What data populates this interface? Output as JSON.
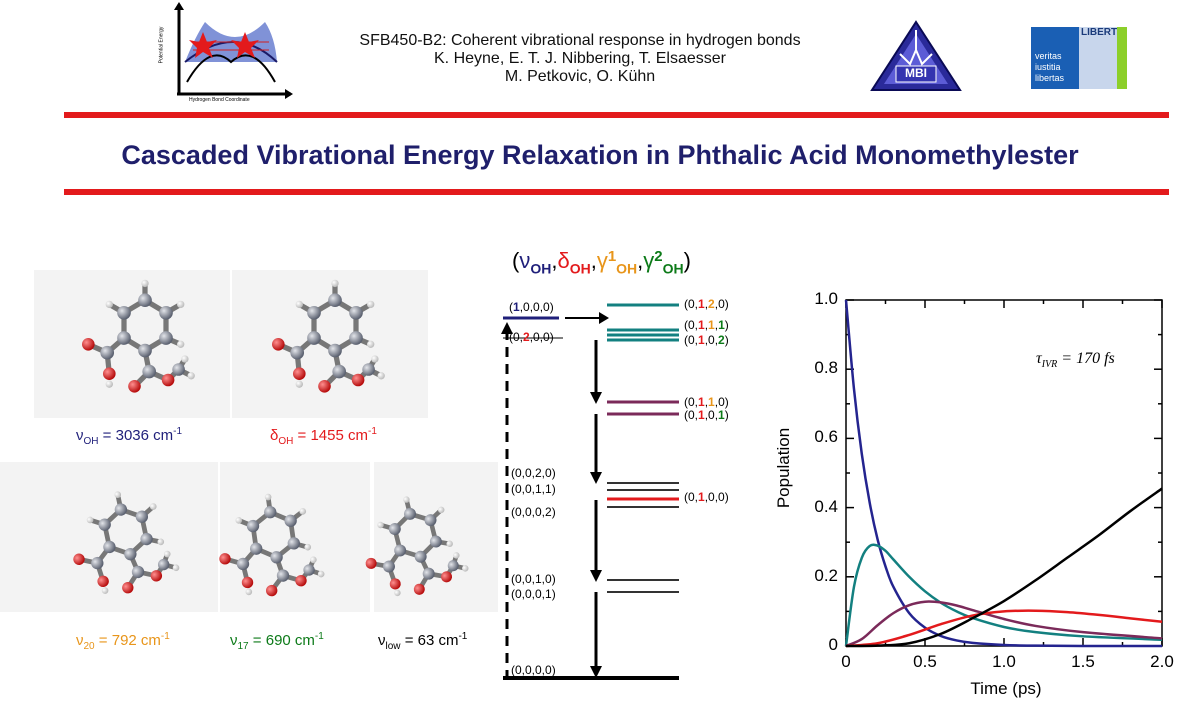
{
  "header": {
    "line1": "SFB450-B2: Coherent vibrational response in hydrogen bonds",
    "line2": "K. Heyne, E. T. J. Nibbering, T. Elsaesser",
    "line3": "M. Petkovic, O. Kühn",
    "energy_axis_label": "Potential Energy",
    "coord_axis_label": "Hydrogen Bond Coordinate",
    "mbi_logo": "MBI",
    "fu_logo_words": [
      "veritas",
      "iustitia",
      "libertas"
    ],
    "fu_logo_banner": "LIBERT"
  },
  "title": "Cascaded Vibrational Energy Relaxation in Phthalic Acid Monomethylester",
  "modes_header": {
    "sym_open": "(",
    "sym_nu": "ν",
    "sub_oh1": "OH",
    "comma": ",",
    "sym_delta": "δ",
    "sub_oh2": "OH",
    "sym_gamma": "γ",
    "one": "1",
    "sub_oh3": "OH",
    "two": "2",
    "sub_oh4": "OH",
    "sym_close": ")"
  },
  "molecules": [
    {
      "symbol": "ν",
      "sub": "OH",
      "value": "= 3036 cm",
      "sup": "-1",
      "color": "#1f1f7a"
    },
    {
      "symbol": "δ",
      "sub": "OH",
      "value": "= 1455 cm",
      "sup": "-1",
      "color": "#e31a1c"
    },
    {
      "symbol": "ν",
      "sub": "20",
      "value": "= 792 cm",
      "sup": "-1",
      "color": "#e8951a"
    },
    {
      "symbol": "ν",
      "sub": "17",
      "value": "= 690 cm",
      "sup": "-1",
      "color": "#0c7a18"
    },
    {
      "symbol": "ν",
      "sub": "low",
      "value": "= 63 cm",
      "sup": "-1",
      "color": "#000000"
    }
  ],
  "levels": {
    "l1000": {
      "open": "(",
      "a": "1",
      "rest": ",0,0,0)"
    },
    "l0200": {
      "open": "(0,",
      "a": "2",
      "rest": ",0,0)"
    },
    "l0120": {
      "open": "(0,",
      "a": "1",
      "c1": ",",
      "b": "2",
      "rest": ",0)"
    },
    "l0111": {
      "open": "(0,",
      "a": "1",
      "c1": ",",
      "b": "1",
      "c2": ",",
      "c": "1",
      "rest": ")"
    },
    "l0102": {
      "open": "(0,",
      "a": "1",
      "c1": ",0,",
      "b": "2",
      "rest": ")"
    },
    "l0110": {
      "open": "(0,",
      "a": "1",
      "c1": ",",
      "b": "1",
      "rest": ",0)"
    },
    "l0101": {
      "open": "(0,",
      "a": "1",
      "c1": ",0,",
      "b": "1",
      "rest": ")"
    },
    "l0100": {
      "open": "(0,",
      "a": "1",
      "rest": ",0,0)"
    },
    "l0020": "(0,0,2,0)",
    "l0011": "(0,0,1,1)",
    "l0002": "(0,0,0,2)",
    "l0010": "(0,0,1,0)",
    "l0001": "(0,0,0,1)",
    "l0000": "(0,0,0,0)"
  },
  "chart_data": {
    "type": "line",
    "xlabel": "Time (ps)",
    "ylabel": "Population",
    "xlim": [
      0,
      2.0
    ],
    "ylim": [
      0,
      1.0
    ],
    "xticks": [
      "0",
      "0.5",
      "1.0",
      "1.5",
      "2.0"
    ],
    "yticks": [
      "0",
      "0.2",
      "0.4",
      "0.6",
      "0.8",
      "1.0"
    ],
    "annotation": {
      "prefix": "τ",
      "sub": "IVR",
      "value": "= 170 fs"
    },
    "series": [
      {
        "color": "#24248f",
        "x": [
          0,
          0.05,
          0.1,
          0.15,
          0.2,
          0.25,
          0.3,
          0.4,
          0.5,
          0.6,
          0.7,
          0.8,
          1.0,
          1.2,
          1.5,
          2.0
        ],
        "y": [
          1.0,
          0.745,
          0.555,
          0.414,
          0.308,
          0.23,
          0.171,
          0.095,
          0.053,
          0.029,
          0.016,
          0.009,
          0.003,
          0.001,
          0.0,
          0.0
        ]
      },
      {
        "color": "#138080",
        "x": [
          0,
          0.05,
          0.1,
          0.15,
          0.2,
          0.25,
          0.3,
          0.4,
          0.5,
          0.6,
          0.7,
          0.8,
          1.0,
          1.2,
          1.5,
          2.0
        ],
        "y": [
          0,
          0.17,
          0.255,
          0.289,
          0.29,
          0.275,
          0.25,
          0.2,
          0.158,
          0.125,
          0.1,
          0.081,
          0.055,
          0.04,
          0.028,
          0.018
        ]
      },
      {
        "color": "#7b2a5a",
        "x": [
          0,
          0.1,
          0.2,
          0.3,
          0.4,
          0.5,
          0.6,
          0.7,
          0.8,
          1.0,
          1.2,
          1.5,
          2.0
        ],
        "y": [
          0,
          0.02,
          0.06,
          0.095,
          0.118,
          0.128,
          0.126,
          0.117,
          0.104,
          0.078,
          0.058,
          0.04,
          0.022
        ]
      },
      {
        "color": "#e31a1c",
        "x": [
          0,
          0.2,
          0.4,
          0.6,
          0.8,
          1.0,
          1.2,
          1.4,
          1.6,
          1.8,
          2.0
        ],
        "y": [
          0,
          0.008,
          0.032,
          0.063,
          0.088,
          0.1,
          0.102,
          0.098,
          0.09,
          0.08,
          0.07
        ]
      },
      {
        "color": "#000000",
        "x": [
          0,
          0.2,
          0.4,
          0.6,
          0.8,
          1.0,
          1.2,
          1.4,
          1.6,
          1.8,
          2.0
        ],
        "y": [
          0,
          0.001,
          0.008,
          0.035,
          0.08,
          0.13,
          0.19,
          0.255,
          0.32,
          0.39,
          0.455
        ]
      }
    ]
  }
}
